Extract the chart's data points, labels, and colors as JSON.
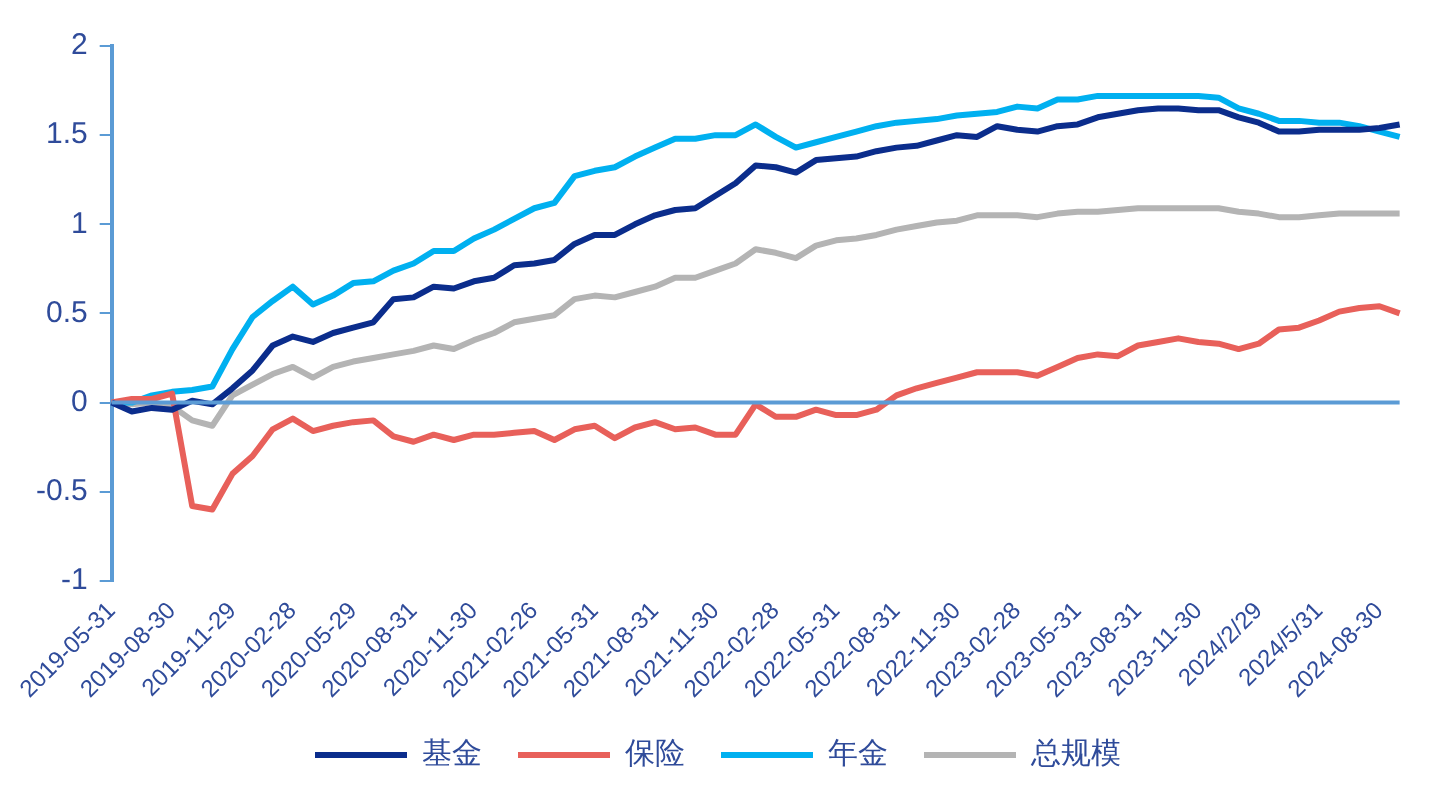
{
  "chart_data": {
    "type": "line",
    "categories": [
      "2019-05-31",
      null,
      null,
      "2019-08-30",
      null,
      null,
      "2019-11-29",
      null,
      null,
      "2020-02-28",
      null,
      null,
      "2020-05-29",
      null,
      null,
      "2020-08-31",
      null,
      null,
      "2020-11-30",
      null,
      null,
      "2021-02-26",
      null,
      null,
      "2021-05-31",
      null,
      null,
      "2021-08-31",
      null,
      null,
      "2021-11-30",
      null,
      null,
      "2022-02-28",
      null,
      null,
      "2022-05-31",
      null,
      null,
      "2022-08-31",
      null,
      null,
      "2022-11-30",
      null,
      null,
      "2023-02-28",
      null,
      null,
      "2023-05-31",
      null,
      null,
      "2023-08-31",
      null,
      null,
      "2023-11-30",
      null,
      null,
      "2024/2/29",
      null,
      null,
      "2024/5/31",
      null,
      null,
      "2024-08-30",
      null
    ],
    "series": [
      {
        "name": "基金",
        "color": "#0b2d8c",
        "values": [
          0,
          -0.05,
          -0.03,
          -0.04,
          0.01,
          -0.01,
          0.08,
          0.18,
          0.32,
          0.37,
          0.34,
          0.39,
          0.42,
          0.45,
          0.58,
          0.59,
          0.65,
          0.64,
          0.68,
          0.7,
          0.77,
          0.78,
          0.8,
          0.89,
          0.94,
          0.94,
          1.0,
          1.05,
          1.08,
          1.09,
          1.16,
          1.23,
          1.33,
          1.32,
          1.29,
          1.36,
          1.37,
          1.38,
          1.41,
          1.43,
          1.44,
          1.47,
          1.5,
          1.49,
          1.55,
          1.53,
          1.52,
          1.55,
          1.56,
          1.6,
          1.62,
          1.64,
          1.65,
          1.65,
          1.64,
          1.64,
          1.6,
          1.57,
          1.52,
          1.52,
          1.53,
          1.53,
          1.53,
          1.54,
          1.56
        ]
      },
      {
        "name": "保险",
        "color": "#e8605a",
        "values": [
          0,
          0.02,
          0.02,
          0.05,
          -0.58,
          -0.6,
          -0.4,
          -0.3,
          -0.15,
          -0.09,
          -0.16,
          -0.13,
          -0.11,
          -0.1,
          -0.19,
          -0.22,
          -0.18,
          -0.21,
          -0.18,
          -0.18,
          -0.17,
          -0.16,
          -0.21,
          -0.15,
          -0.13,
          -0.2,
          -0.14,
          -0.11,
          -0.15,
          -0.14,
          -0.18,
          -0.18,
          -0.01,
          -0.08,
          -0.08,
          -0.04,
          -0.07,
          -0.07,
          -0.04,
          0.04,
          0.08,
          0.11,
          0.14,
          0.17,
          0.17,
          0.17,
          0.15,
          0.2,
          0.25,
          0.27,
          0.26,
          0.32,
          0.34,
          0.36,
          0.34,
          0.33,
          0.3,
          0.33,
          0.41,
          0.42,
          0.46,
          0.51,
          0.53,
          0.54,
          0.5
        ]
      },
      {
        "name": "年金",
        "color": "#00b0f0",
        "values": [
          0,
          0,
          0.04,
          0.06,
          0.07,
          0.09,
          0.3,
          0.48,
          0.57,
          0.65,
          0.55,
          0.6,
          0.67,
          0.68,
          0.74,
          0.78,
          0.85,
          0.85,
          0.92,
          0.97,
          1.03,
          1.09,
          1.12,
          1.27,
          1.3,
          1.32,
          1.38,
          1.43,
          1.48,
          1.48,
          1.5,
          1.5,
          1.56,
          1.49,
          1.43,
          1.46,
          1.49,
          1.52,
          1.55,
          1.57,
          1.58,
          1.59,
          1.61,
          1.62,
          1.63,
          1.66,
          1.65,
          1.7,
          1.7,
          1.72,
          1.72,
          1.72,
          1.72,
          1.72,
          1.72,
          1.71,
          1.65,
          1.62,
          1.58,
          1.58,
          1.57,
          1.57,
          1.55,
          1.52,
          1.49
        ]
      },
      {
        "name": "总规模",
        "color": "#b4b4b4",
        "values": [
          0,
          -0.01,
          0,
          -0.02,
          -0.1,
          -0.13,
          0.04,
          0.1,
          0.16,
          0.2,
          0.14,
          0.2,
          0.23,
          0.25,
          0.27,
          0.29,
          0.32,
          0.3,
          0.35,
          0.39,
          0.45,
          0.47,
          0.49,
          0.58,
          0.6,
          0.59,
          0.62,
          0.65,
          0.7,
          0.7,
          0.74,
          0.78,
          0.86,
          0.84,
          0.81,
          0.88,
          0.91,
          0.92,
          0.94,
          0.97,
          0.99,
          1.01,
          1.02,
          1.05,
          1.05,
          1.05,
          1.04,
          1.06,
          1.07,
          1.07,
          1.08,
          1.09,
          1.09,
          1.09,
          1.09,
          1.09,
          1.07,
          1.06,
          1.04,
          1.04,
          1.05,
          1.06,
          1.06,
          1.06,
          1.06
        ]
      }
    ],
    "ylim": [
      -1,
      2
    ],
    "yticks": [
      -1,
      -0.5,
      0,
      0.5,
      1,
      1.5,
      2
    ],
    "ref_lines": [
      {
        "axis": "y",
        "value": 0,
        "color": "#5b9bd5"
      }
    ],
    "legend": "bottom",
    "marker": "none",
    "line_style": "solid"
  }
}
